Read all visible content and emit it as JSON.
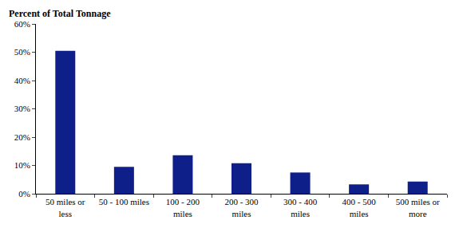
{
  "chart_data": {
    "type": "bar",
    "ylabel": "Percent of Total Tonnage",
    "categories": [
      "50 miles or less",
      "50 - 100 miles",
      "100 - 200 miles",
      "200 - 300 miles",
      "300 - 400 miles",
      "400 - 500 miles",
      "500 miles or more"
    ],
    "values": [
      50.5,
      9.5,
      13.6,
      10.8,
      7.5,
      3.3,
      4.3
    ],
    "color": "#0f1f8a",
    "ylim": [
      0,
      60
    ],
    "yticks": [
      {
        "value": 0,
        "label": "0%"
      },
      {
        "value": 10,
        "label": "10%"
      },
      {
        "value": 20,
        "label": "20%"
      },
      {
        "value": 30,
        "label": "30%"
      },
      {
        "value": 40,
        "label": "40%"
      },
      {
        "value": 50,
        "label": "50%"
      },
      {
        "value": 60,
        "label": "60%"
      }
    ],
    "grid": false
  }
}
